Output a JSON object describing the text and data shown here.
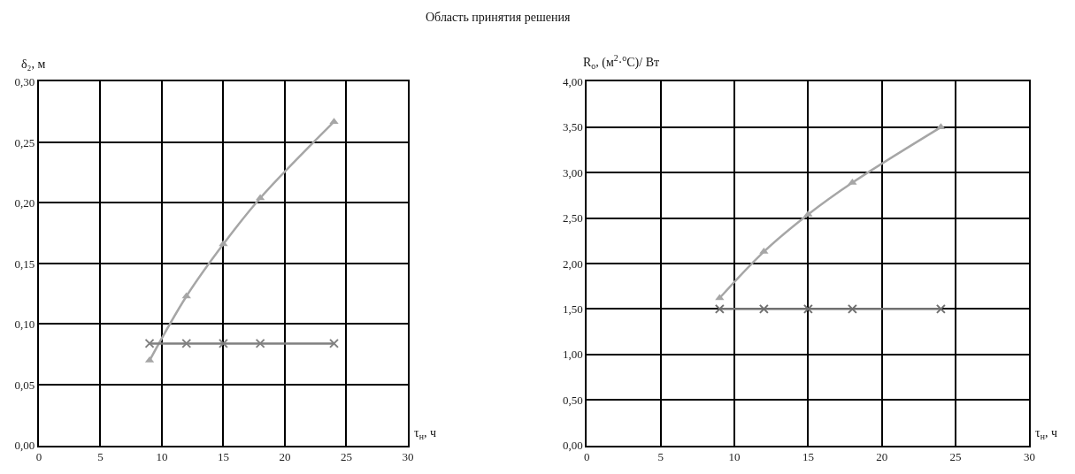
{
  "chart_data": [
    {
      "type": "line",
      "xlabel": "τ$_{н}$, ч",
      "ylabel": "δ₂, м",
      "x": [
        9,
        12,
        15,
        18,
        24
      ],
      "series": [
        {
          "color": "#a6a6a6",
          "marker": "triangle",
          "values": [
            0.07,
            0.123,
            0.166,
            0.204,
            0.267
          ]
        },
        {
          "color": "#808080",
          "marker": "cross",
          "values": [
            0.084,
            0.084,
            0.084,
            0.084,
            0.084
          ]
        }
      ],
      "xlim": [
        0,
        30
      ],
      "xticks": [
        0,
        5,
        10,
        15,
        20,
        25,
        30
      ],
      "ylim": [
        0,
        0.3
      ],
      "yticks": [
        {
          "value": 0,
          "label": "0,00"
        },
        {
          "value": 0.05,
          "label": "0,05"
        },
        {
          "value": 0.1,
          "label": "0,10"
        },
        {
          "value": 0.15,
          "label": "0,15"
        },
        {
          "value": 0.2,
          "label": "0,20"
        },
        {
          "value": 0.25,
          "label": "0,25"
        },
        {
          "value": 0.3,
          "label": "0,30"
        }
      ],
      "grid": true,
      "annotations": [
        "Область принятия решения"
      ]
    },
    {
      "type": "line",
      "xlabel": "τ$_{н}$, ч",
      "ylabel": "R$_{o}$, (м$^{2}$·$^{o}$C)/ Вт",
      "x": [
        9,
        12,
        15,
        18,
        24
      ],
      "series": [
        {
          "color": "#a6a6a6",
          "marker": "triangle",
          "values": [
            1.62,
            2.13,
            2.54,
            2.89,
            3.5
          ]
        },
        {
          "color": "#707070",
          "marker": "cross",
          "values": [
            1.5,
            1.5,
            1.5,
            1.5,
            1.5
          ]
        }
      ],
      "xlim": [
        0,
        30
      ],
      "xticks": [
        0,
        5,
        10,
        15,
        20,
        25,
        30
      ],
      "ylim": [
        0,
        4.0
      ],
      "yticks": [
        {
          "value": 0,
          "label": "0,00"
        },
        {
          "value": 0.5,
          "label": "0,50"
        },
        {
          "value": 1.0,
          "label": "1,00"
        },
        {
          "value": 1.5,
          "label": "1,50"
        },
        {
          "value": 2.0,
          "label": "2,00"
        },
        {
          "value": 2.5,
          "label": "2,50"
        },
        {
          "value": 3.0,
          "label": "3,00"
        },
        {
          "value": 3.5,
          "label": "3,50"
        },
        {
          "value": 4.0,
          "label": "4,00"
        }
      ],
      "grid": true
    }
  ]
}
